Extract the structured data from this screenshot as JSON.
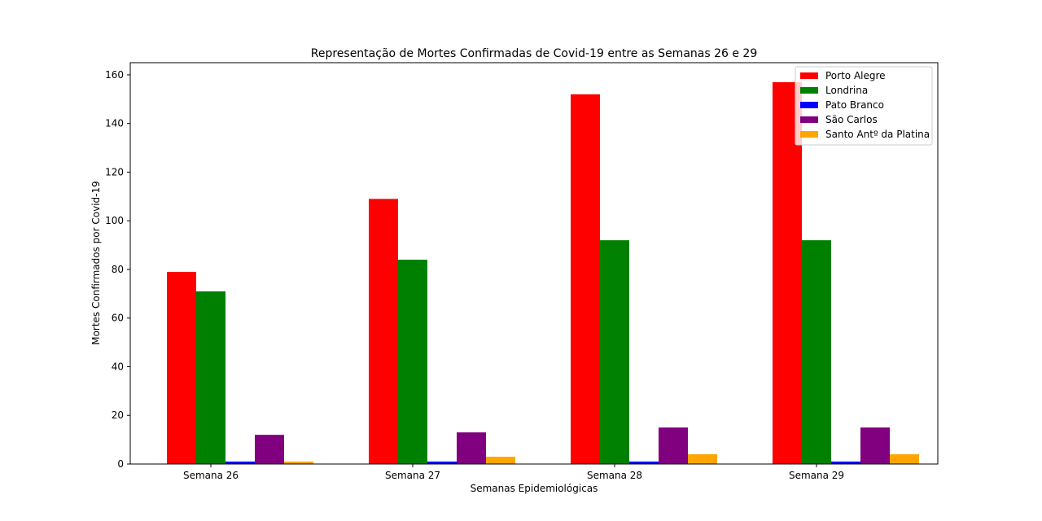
{
  "chart_data": {
    "type": "bar",
    "title": "Representação de Mortes Confirmadas de Covid-19 entre as Semanas 26 e 29",
    "xlabel": "Semanas Epidemiológicas",
    "ylabel": "Mortes Confirmados por Covid-19",
    "categories": [
      "Semana 26",
      "Semana 27",
      "Semana 28",
      "Semana 29"
    ],
    "ylim": [
      0,
      165
    ],
    "yticks": [
      0,
      20,
      40,
      60,
      80,
      100,
      120,
      140,
      160
    ],
    "grid": false,
    "legend_position": "top-right",
    "series": [
      {
        "name": "Porto Alegre",
        "color": "#ff0000",
        "values": [
          79,
          109,
          152,
          157
        ]
      },
      {
        "name": "Londrina",
        "color": "#008000",
        "values": [
          71,
          84,
          92,
          92
        ]
      },
      {
        "name": "Pato Branco",
        "color": "#0000ff",
        "values": [
          1,
          1,
          1,
          1
        ]
      },
      {
        "name": "São Carlos",
        "color": "#800080",
        "values": [
          12,
          13,
          15,
          15
        ]
      },
      {
        "name": "Santo Antº da Platina",
        "color": "#ffa500",
        "values": [
          1,
          3,
          4,
          4
        ]
      }
    ]
  }
}
